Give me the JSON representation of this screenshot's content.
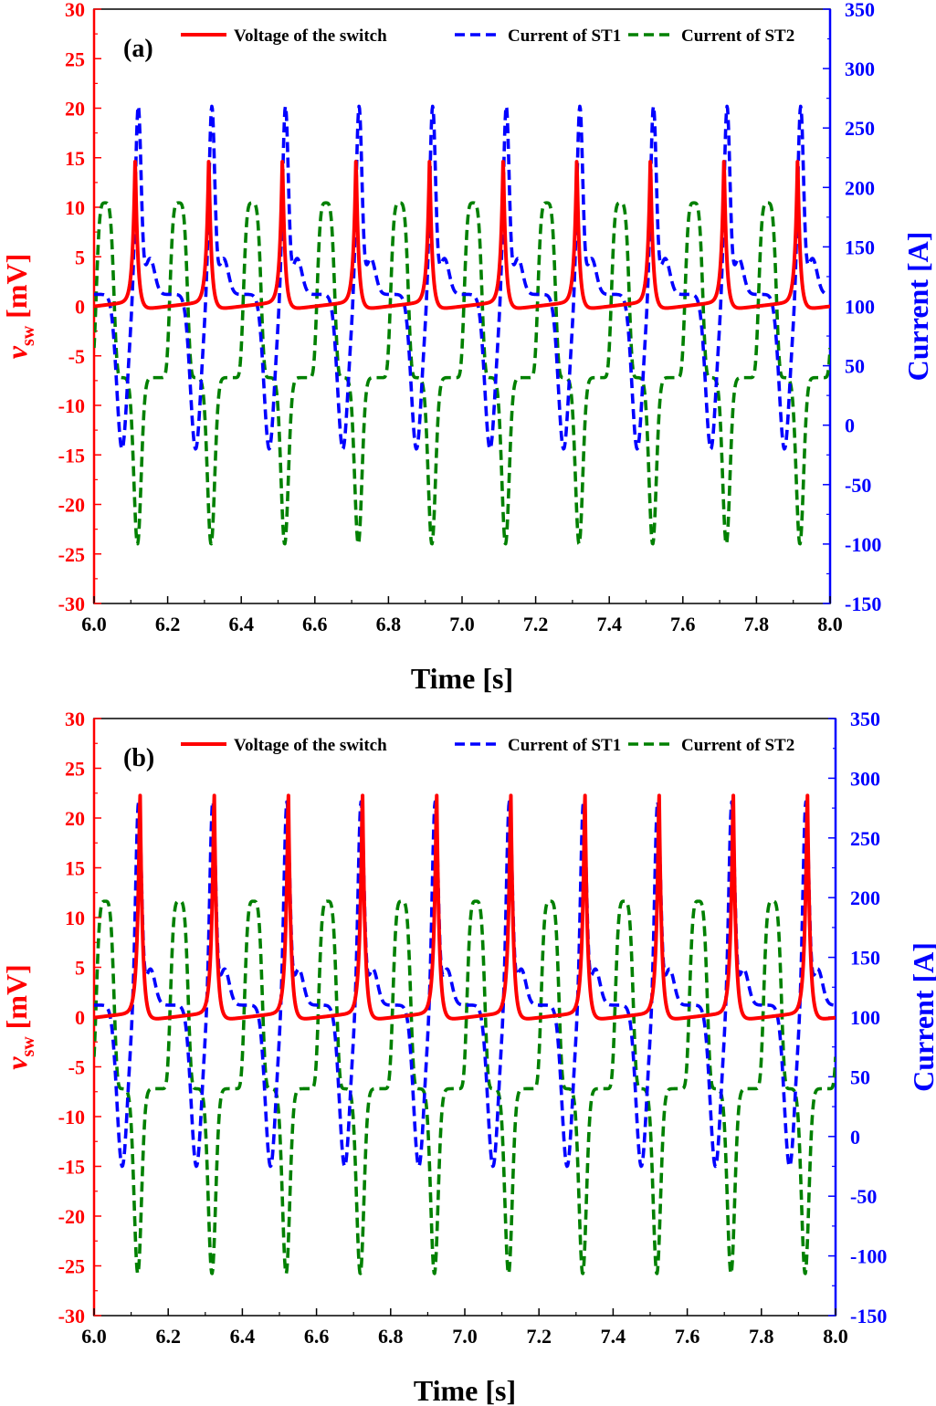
{
  "chart_data": [
    {
      "type": "line",
      "panel_label": "(a)",
      "xlabel": "Time [s]",
      "ylabel_left": "v",
      "ylabel_left_sub": "sw",
      "ylabel_left_unit": " [mV]",
      "ylabel_right": "Current [A]",
      "xlim": [
        6.0,
        8.0
      ],
      "ylim_left": [
        -30,
        30
      ],
      "ylim_right": [
        -150,
        350
      ],
      "x_ticks": [
        "6.0",
        "6.2",
        "6.4",
        "6.6",
        "6.8",
        "7.0",
        "7.2",
        "7.4",
        "7.6",
        "7.8",
        "8.0"
      ],
      "y_ticks_left": [
        "-30",
        "-25",
        "-20",
        "-15",
        "-10",
        "-5",
        "0",
        "5",
        "10",
        "15",
        "20",
        "25",
        "30"
      ],
      "y_ticks_right": [
        "-150",
        "-100",
        "-50",
        "0",
        "50",
        "100",
        "150",
        "200",
        "250",
        "300",
        "350"
      ],
      "legend_position": "top",
      "series": [
        {
          "name": "Voltage of the switch",
          "axis": "left",
          "color": "#ff0000",
          "style": "solid",
          "period": 0.2,
          "peak_time": 6.112,
          "peak": 15.3,
          "baseline_min": -0.4,
          "baseline_max": 0.5
        },
        {
          "name": "Current of ST1",
          "axis": "right",
          "color": "#0000ff",
          "style": "dashed",
          "period": 0.2,
          "peak_time": 6.12,
          "peak": 268,
          "min": -20
        },
        {
          "name": "Current of ST2",
          "axis": "right",
          "color": "#008000",
          "style": "dashed",
          "period": 0.2,
          "peak_time": 6.03,
          "peak": 187,
          "min": -100
        }
      ]
    },
    {
      "type": "line",
      "panel_label": "(b)",
      "xlabel": "Time [s]",
      "ylabel_left": "v",
      "ylabel_left_sub": "sw",
      "ylabel_left_unit": " [mV]",
      "ylabel_right": "Current [A]",
      "xlim": [
        6.0,
        8.0
      ],
      "ylim_left": [
        -30,
        30
      ],
      "ylim_right": [
        -150,
        350
      ],
      "x_ticks": [
        "6.0",
        "6.2",
        "6.4",
        "6.6",
        "6.8",
        "7.0",
        "7.2",
        "7.4",
        "7.6",
        "7.8",
        "8.0"
      ],
      "y_ticks_left": [
        "-30",
        "-25",
        "-20",
        "-15",
        "-10",
        "-5",
        "0",
        "5",
        "10",
        "15",
        "20",
        "25",
        "30"
      ],
      "y_ticks_right": [
        "-150",
        "-100",
        "-50",
        "0",
        "50",
        "100",
        "150",
        "200",
        "250",
        "300",
        "350"
      ],
      "legend_position": "top",
      "series": [
        {
          "name": "Voltage of the switch",
          "axis": "left",
          "color": "#ff0000",
          "style": "solid",
          "period": 0.2,
          "peak_time": 6.124,
          "peak": 23.6,
          "baseline_min": -0.4,
          "baseline_max": 0.5
        },
        {
          "name": "Current of ST1",
          "axis": "right",
          "color": "#0000ff",
          "style": "dashed",
          "period": 0.2,
          "peak_time": 6.12,
          "peak": 280,
          "min": -25
        },
        {
          "name": "Current of ST2",
          "axis": "right",
          "color": "#008000",
          "style": "dashed",
          "period": 0.2,
          "peak_time": 6.03,
          "peak": 197,
          "min": -115
        }
      ]
    }
  ]
}
